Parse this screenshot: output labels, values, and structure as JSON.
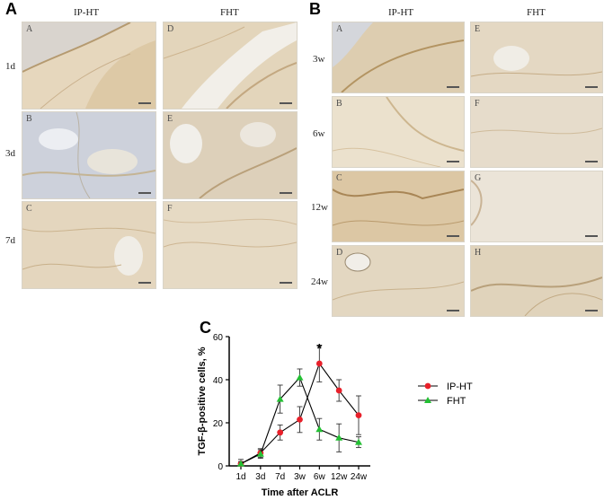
{
  "panel_a": {
    "letter": "A",
    "columns": [
      "IP-HT",
      "FHT"
    ],
    "rows": [
      "1d",
      "3d",
      "7d"
    ],
    "sub_letters": [
      [
        "A",
        "D"
      ],
      [
        "B",
        "E"
      ],
      [
        "C",
        "F"
      ]
    ]
  },
  "panel_b": {
    "letter": "B",
    "columns": [
      "IP-HT",
      "FHT"
    ],
    "rows": [
      "3w",
      "6w",
      "12w",
      "24w"
    ],
    "sub_letters": [
      [
        "A",
        "E"
      ],
      [
        "B",
        "F"
      ],
      [
        "C",
        "G"
      ],
      [
        "D",
        "H"
      ]
    ]
  },
  "panel_c": {
    "letter": "C"
  },
  "colors": {
    "iphT": "#e8202a",
    "fht": "#23c033",
    "tissue_base": "#e8dcc4",
    "tissue_blue": "#c9cedb"
  },
  "chart_data": {
    "type": "line",
    "categories": [
      "1d",
      "3d",
      "7d",
      "3w",
      "6w",
      "12w",
      "24w"
    ],
    "ylabel": "TGF-β-positive cells, %",
    "xlabel": "Time after ACLR",
    "ylim": [
      0,
      60
    ],
    "yticks": [
      0,
      20,
      40,
      60
    ],
    "series": [
      {
        "name": "IP-HT",
        "marker": "circle",
        "color": "#e8202a",
        "values": [
          1,
          6,
          15.5,
          21.5,
          47.5,
          35,
          23.5
        ],
        "errors": [
          2,
          2,
          3.5,
          6,
          8.5,
          5,
          9
        ]
      },
      {
        "name": "FHT",
        "marker": "triangle",
        "color": "#23c033",
        "values": [
          1,
          5.5,
          31,
          41,
          17,
          13,
          11
        ],
        "errors": [
          1,
          2,
          6.5,
          4,
          5,
          6.5,
          2.5
        ]
      }
    ],
    "annotations": [
      {
        "category": "6w",
        "text": "*"
      }
    ],
    "legend_position": "right"
  }
}
